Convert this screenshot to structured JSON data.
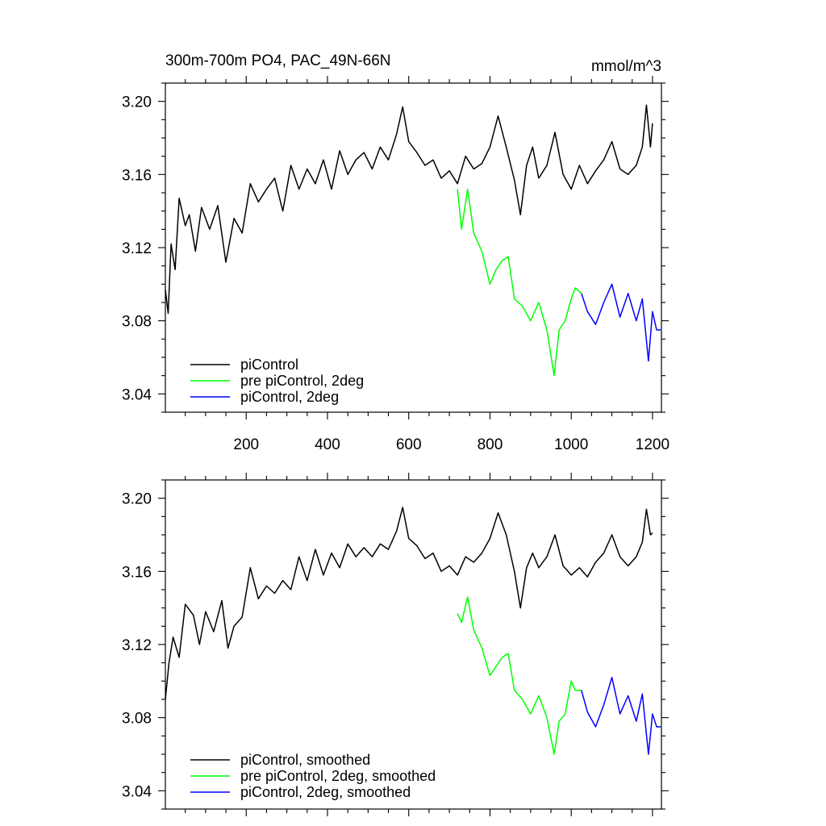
{
  "chart_data": [
    {
      "type": "line",
      "title_left": "300m-700m PO4, PAC_49N-66N",
      "title_right": "mmol/m^3",
      "xlim": [
        1,
        1222
      ],
      "ylim": [
        3.03,
        3.21
      ],
      "x_ticks": [
        200,
        400,
        600,
        800,
        1000,
        1200
      ],
      "x_ticklabels": [
        "200",
        "400",
        "600",
        "800",
        "1000",
        "1200"
      ],
      "y_ticks": [
        3.04,
        3.08,
        3.12,
        3.16,
        3.2
      ],
      "y_ticklabels": [
        "3.04",
        "3.08",
        "3.12",
        "3.16",
        "3.20"
      ],
      "legend_position": "bottom-left",
      "series": [
        {
          "name": "piControl",
          "color": "#000000",
          "points": [
            [
              1,
              3.097
            ],
            [
              8,
              3.084
            ],
            [
              15,
              3.122
            ],
            [
              25,
              3.108
            ],
            [
              35,
              3.147
            ],
            [
              50,
              3.132
            ],
            [
              60,
              3.138
            ],
            [
              75,
              3.118
            ],
            [
              90,
              3.142
            ],
            [
              110,
              3.13
            ],
            [
              130,
              3.143
            ],
            [
              150,
              3.112
            ],
            [
              170,
              3.136
            ],
            [
              190,
              3.128
            ],
            [
              210,
              3.155
            ],
            [
              230,
              3.145
            ],
            [
              250,
              3.152
            ],
            [
              270,
              3.158
            ],
            [
              290,
              3.14
            ],
            [
              310,
              3.165
            ],
            [
              330,
              3.152
            ],
            [
              350,
              3.163
            ],
            [
              370,
              3.155
            ],
            [
              390,
              3.168
            ],
            [
              410,
              3.152
            ],
            [
              430,
              3.173
            ],
            [
              450,
              3.16
            ],
            [
              470,
              3.168
            ],
            [
              490,
              3.172
            ],
            [
              510,
              3.163
            ],
            [
              530,
              3.175
            ],
            [
              550,
              3.168
            ],
            [
              570,
              3.182
            ],
            [
              585,
              3.197
            ],
            [
              600,
              3.178
            ],
            [
              620,
              3.172
            ],
            [
              640,
              3.165
            ],
            [
              660,
              3.168
            ],
            [
              680,
              3.158
            ],
            [
              700,
              3.162
            ],
            [
              720,
              3.155
            ],
            [
              740,
              3.17
            ],
            [
              760,
              3.163
            ],
            [
              780,
              3.166
            ],
            [
              800,
              3.175
            ],
            [
              820,
              3.192
            ],
            [
              840,
              3.175
            ],
            [
              860,
              3.157
            ],
            [
              875,
              3.138
            ],
            [
              890,
              3.165
            ],
            [
              905,
              3.175
            ],
            [
              920,
              3.158
            ],
            [
              940,
              3.165
            ],
            [
              960,
              3.183
            ],
            [
              980,
              3.16
            ],
            [
              1000,
              3.152
            ],
            [
              1020,
              3.165
            ],
            [
              1040,
              3.155
            ],
            [
              1060,
              3.162
            ],
            [
              1080,
              3.168
            ],
            [
              1100,
              3.178
            ],
            [
              1120,
              3.163
            ],
            [
              1140,
              3.16
            ],
            [
              1160,
              3.165
            ],
            [
              1175,
              3.175
            ],
            [
              1185,
              3.198
            ],
            [
              1195,
              3.175
            ],
            [
              1200,
              3.188
            ]
          ]
        },
        {
          "name": "pre piControl, 2deg",
          "color": "#00ff00",
          "points": [
            [
              720,
              3.152
            ],
            [
              730,
              3.13
            ],
            [
              745,
              3.152
            ],
            [
              760,
              3.128
            ],
            [
              780,
              3.118
            ],
            [
              800,
              3.1
            ],
            [
              815,
              3.108
            ],
            [
              830,
              3.113
            ],
            [
              845,
              3.115
            ],
            [
              860,
              3.092
            ],
            [
              880,
              3.088
            ],
            [
              900,
              3.08
            ],
            [
              920,
              3.09
            ],
            [
              940,
              3.075
            ],
            [
              958,
              3.05
            ],
            [
              970,
              3.075
            ],
            [
              985,
              3.08
            ],
            [
              1000,
              3.092
            ],
            [
              1010,
              3.098
            ],
            [
              1025,
              3.095
            ]
          ]
        },
        {
          "name": "piControl, 2deg",
          "color": "#0000ff",
          "points": [
            [
              1025,
              3.095
            ],
            [
              1040,
              3.085
            ],
            [
              1060,
              3.078
            ],
            [
              1080,
              3.09
            ],
            [
              1100,
              3.1
            ],
            [
              1120,
              3.082
            ],
            [
              1140,
              3.095
            ],
            [
              1160,
              3.08
            ],
            [
              1175,
              3.092
            ],
            [
              1190,
              3.058
            ],
            [
              1200,
              3.085
            ],
            [
              1210,
              3.075
            ],
            [
              1220,
              3.075
            ]
          ]
        }
      ]
    },
    {
      "type": "line",
      "xlim": [
        1,
        1222
      ],
      "ylim": [
        3.03,
        3.21
      ],
      "x_ticks": [
        200,
        400,
        600,
        800,
        1000,
        1200
      ],
      "y_ticks": [
        3.04,
        3.08,
        3.12,
        3.16,
        3.2
      ],
      "y_ticklabels": [
        "3.04",
        "3.08",
        "3.12",
        "3.16",
        "3.20"
      ],
      "legend_position": "bottom-left",
      "series": [
        {
          "name": "piControl, smoothed",
          "color": "#000000",
          "points": [
            [
              1,
              3.09
            ],
            [
              10,
              3.11
            ],
            [
              20,
              3.124
            ],
            [
              35,
              3.113
            ],
            [
              50,
              3.142
            ],
            [
              70,
              3.136
            ],
            [
              85,
              3.12
            ],
            [
              100,
              3.138
            ],
            [
              120,
              3.127
            ],
            [
              140,
              3.144
            ],
            [
              155,
              3.118
            ],
            [
              170,
              3.13
            ],
            [
              190,
              3.135
            ],
            [
              210,
              3.162
            ],
            [
              230,
              3.145
            ],
            [
              250,
              3.152
            ],
            [
              270,
              3.148
            ],
            [
              290,
              3.155
            ],
            [
              310,
              3.15
            ],
            [
              330,
              3.168
            ],
            [
              350,
              3.155
            ],
            [
              370,
              3.172
            ],
            [
              390,
              3.158
            ],
            [
              410,
              3.17
            ],
            [
              430,
              3.162
            ],
            [
              450,
              3.175
            ],
            [
              470,
              3.168
            ],
            [
              490,
              3.173
            ],
            [
              510,
              3.168
            ],
            [
              530,
              3.175
            ],
            [
              550,
              3.172
            ],
            [
              570,
              3.182
            ],
            [
              585,
              3.195
            ],
            [
              600,
              3.178
            ],
            [
              620,
              3.174
            ],
            [
              640,
              3.167
            ],
            [
              660,
              3.17
            ],
            [
              680,
              3.16
            ],
            [
              700,
              3.163
            ],
            [
              720,
              3.158
            ],
            [
              740,
              3.168
            ],
            [
              760,
              3.165
            ],
            [
              780,
              3.17
            ],
            [
              800,
              3.178
            ],
            [
              820,
              3.192
            ],
            [
              840,
              3.18
            ],
            [
              860,
              3.16
            ],
            [
              875,
              3.14
            ],
            [
              890,
              3.162
            ],
            [
              905,
              3.17
            ],
            [
              920,
              3.162
            ],
            [
              940,
              3.168
            ],
            [
              960,
              3.18
            ],
            [
              980,
              3.163
            ],
            [
              1000,
              3.158
            ],
            [
              1020,
              3.162
            ],
            [
              1040,
              3.157
            ],
            [
              1060,
              3.165
            ],
            [
              1080,
              3.17
            ],
            [
              1100,
              3.18
            ],
            [
              1120,
              3.168
            ],
            [
              1140,
              3.163
            ],
            [
              1160,
              3.168
            ],
            [
              1175,
              3.176
            ],
            [
              1185,
              3.194
            ],
            [
              1195,
              3.18
            ],
            [
              1200,
              3.181
            ]
          ]
        },
        {
          "name": "pre piControl, 2deg, smoothed",
          "color": "#00ff00",
          "points": [
            [
              720,
              3.137
            ],
            [
              730,
              3.132
            ],
            [
              745,
              3.146
            ],
            [
              760,
              3.128
            ],
            [
              780,
              3.118
            ],
            [
              800,
              3.103
            ],
            [
              815,
              3.108
            ],
            [
              830,
              3.113
            ],
            [
              845,
              3.115
            ],
            [
              860,
              3.095
            ],
            [
              880,
              3.09
            ],
            [
              900,
              3.082
            ],
            [
              920,
              3.092
            ],
            [
              940,
              3.08
            ],
            [
              958,
              3.06
            ],
            [
              970,
              3.078
            ],
            [
              985,
              3.082
            ],
            [
              1000,
              3.1
            ],
            [
              1010,
              3.095
            ],
            [
              1025,
              3.095
            ]
          ]
        },
        {
          "name": "piControl, 2deg, smoothed",
          "color": "#0000ff",
          "points": [
            [
              1025,
              3.095
            ],
            [
              1040,
              3.083
            ],
            [
              1060,
              3.075
            ],
            [
              1080,
              3.087
            ],
            [
              1100,
              3.102
            ],
            [
              1120,
              3.082
            ],
            [
              1140,
              3.092
            ],
            [
              1160,
              3.078
            ],
            [
              1175,
              3.093
            ],
            [
              1190,
              3.06
            ],
            [
              1200,
              3.082
            ],
            [
              1210,
              3.075
            ],
            [
              1220,
              3.075
            ]
          ]
        }
      ]
    }
  ]
}
